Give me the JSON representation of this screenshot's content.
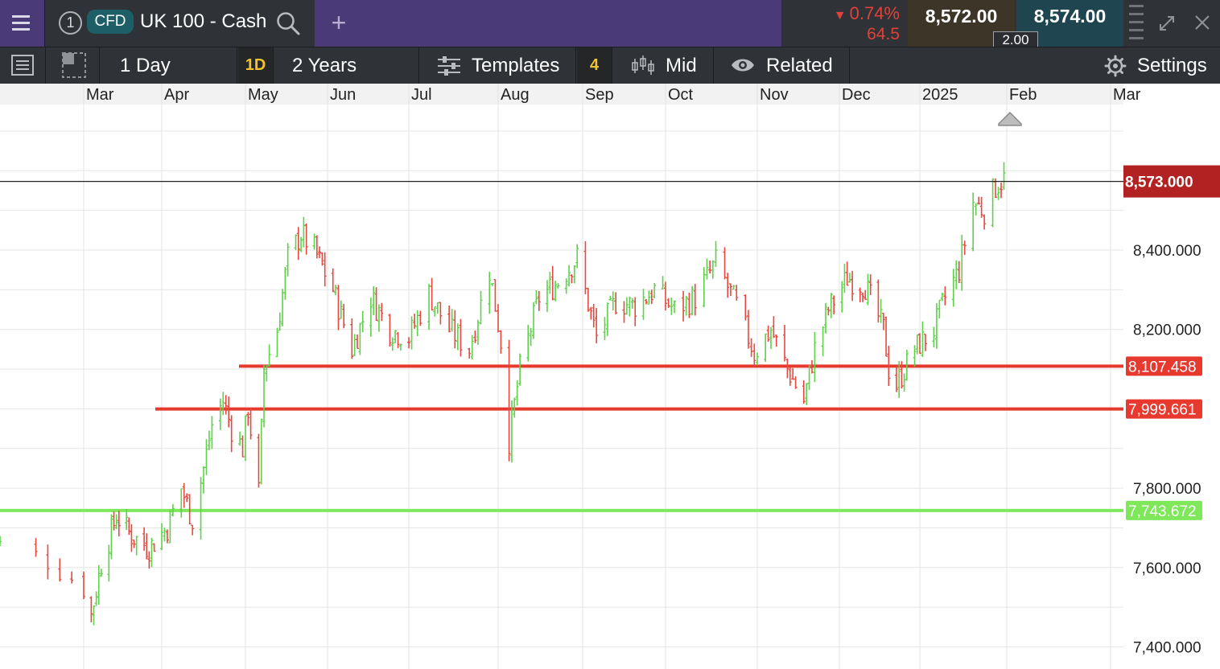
{
  "instrument": {
    "tab_number": "1",
    "badge": "CFD",
    "name": "UK 100 - Cash"
  },
  "quote": {
    "change_pct": "0.74%",
    "change_points": "64.5",
    "direction": "down",
    "sell": "8,572.00",
    "buy": "8,574.00",
    "spread": "2.00"
  },
  "toolbar": {
    "interval": "1 Day",
    "interval_badge": "1D",
    "range": "2 Years",
    "templates": "Templates",
    "templates_count": "4",
    "price_type": "Mid",
    "related": "Related",
    "settings": "Settings"
  },
  "colors": {
    "header_purple": "#4a3a78",
    "toolbar_bg": "#2f3337",
    "up_candle": "#5fd14a",
    "down_candle": "#e8483f",
    "resistance_line": "#e8392f",
    "support_line": "#7ee85a",
    "current_price_tag": "#b22222",
    "accent_yellow": "#f2c230"
  },
  "chart_data": {
    "type": "ohlc",
    "timeframe": "1 Day",
    "x_labels": [
      "Mar",
      "Apr",
      "May",
      "Jun",
      "Jul",
      "Aug",
      "Sep",
      "Oct",
      "Nov",
      "Dec",
      "2025",
      "Feb",
      "Mar"
    ],
    "y_tick_labels": [
      "8,400.000",
      "8,200.000",
      "7,800.000",
      "7,600.000",
      "7,400.000"
    ],
    "y_ticks": [
      8400,
      8200,
      7800,
      7600,
      7400
    ],
    "ylim": [
      7350,
      8800
    ],
    "current_price": 8573.0,
    "current_price_label": "8,573.000",
    "horizontal_lines": [
      {
        "value": 8107.458,
        "label": "8,107.458",
        "color": "#e8392f",
        "start": "May"
      },
      {
        "value": 7999.661,
        "label": "7,999.661",
        "color": "#e8392f",
        "start": "Apr"
      },
      {
        "value": 7743.672,
        "label": "7,743.672",
        "color": "#7ee85a",
        "start": "Mar"
      }
    ],
    "close_path": [
      [
        "2024-02-20",
        7680
      ],
      [
        "2024-02-27",
        7620
      ],
      [
        "2024-03-04",
        7480
      ],
      [
        "2024-03-08",
        7610
      ],
      [
        "2024-03-14",
        7730
      ],
      [
        "2024-03-20",
        7680
      ],
      [
        "2024-03-27",
        7650
      ],
      [
        "2024-04-03",
        7700
      ],
      [
        "2024-04-08",
        7800
      ],
      [
        "2024-04-12",
        7720
      ],
      [
        "2024-04-16",
        7850
      ],
      [
        "2024-04-19",
        7960
      ],
      [
        "2024-04-23",
        8020
      ],
      [
        "2024-04-26",
        7950
      ],
      [
        "2024-04-30",
        7900
      ],
      [
        "2024-05-02",
        8000
      ],
      [
        "2024-05-06",
        7790
      ],
      [
        "2024-05-08",
        8100
      ],
      [
        "2024-05-13",
        8200
      ],
      [
        "2024-05-17",
        8380
      ],
      [
        "2024-05-22",
        8440
      ],
      [
        "2024-05-27",
        8400
      ],
      [
        "2024-06-03",
        8300
      ],
      [
        "2024-06-10",
        8150
      ],
      [
        "2024-06-17",
        8280
      ],
      [
        "2024-06-24",
        8200
      ],
      [
        "2024-07-01",
        8180
      ],
      [
        "2024-07-08",
        8290
      ],
      [
        "2024-07-15",
        8200
      ],
      [
        "2024-07-22",
        8150
      ],
      [
        "2024-07-29",
        8350
      ],
      [
        "2024-08-02",
        8170
      ],
      [
        "2024-08-05",
        7920
      ],
      [
        "2024-08-09",
        8100
      ],
      [
        "2024-08-16",
        8280
      ],
      [
        "2024-08-23",
        8320
      ],
      [
        "2024-08-30",
        8380
      ],
      [
        "2024-09-06",
        8180
      ],
      [
        "2024-09-13",
        8270
      ],
      [
        "2024-09-20",
        8260
      ],
      [
        "2024-09-27",
        8300
      ],
      [
        "2024-10-04",
        8250
      ],
      [
        "2024-10-11",
        8280
      ],
      [
        "2024-10-18",
        8370
      ],
      [
        "2024-10-25",
        8260
      ],
      [
        "2024-10-31",
        8140
      ],
      [
        "2024-11-06",
        8200
      ],
      [
        "2024-11-12",
        8100
      ],
      [
        "2024-11-18",
        8020
      ],
      [
        "2024-11-22",
        8150
      ],
      [
        "2024-11-27",
        8250
      ],
      [
        "2024-12-04",
        8330
      ],
      [
        "2024-12-11",
        8310
      ],
      [
        "2024-12-18",
        8200
      ],
      [
        "2024-12-20",
        8100
      ],
      [
        "2024-12-23",
        8060
      ],
      [
        "2024-12-30",
        8150
      ],
      [
        "2025-01-06",
        8200
      ],
      [
        "2025-01-10",
        8280
      ],
      [
        "2025-01-15",
        8350
      ],
      [
        "2025-01-20",
        8520
      ],
      [
        "2025-01-24",
        8500
      ],
      [
        "2025-01-28",
        8560
      ],
      [
        "2025-01-31",
        8580
      ]
    ]
  }
}
